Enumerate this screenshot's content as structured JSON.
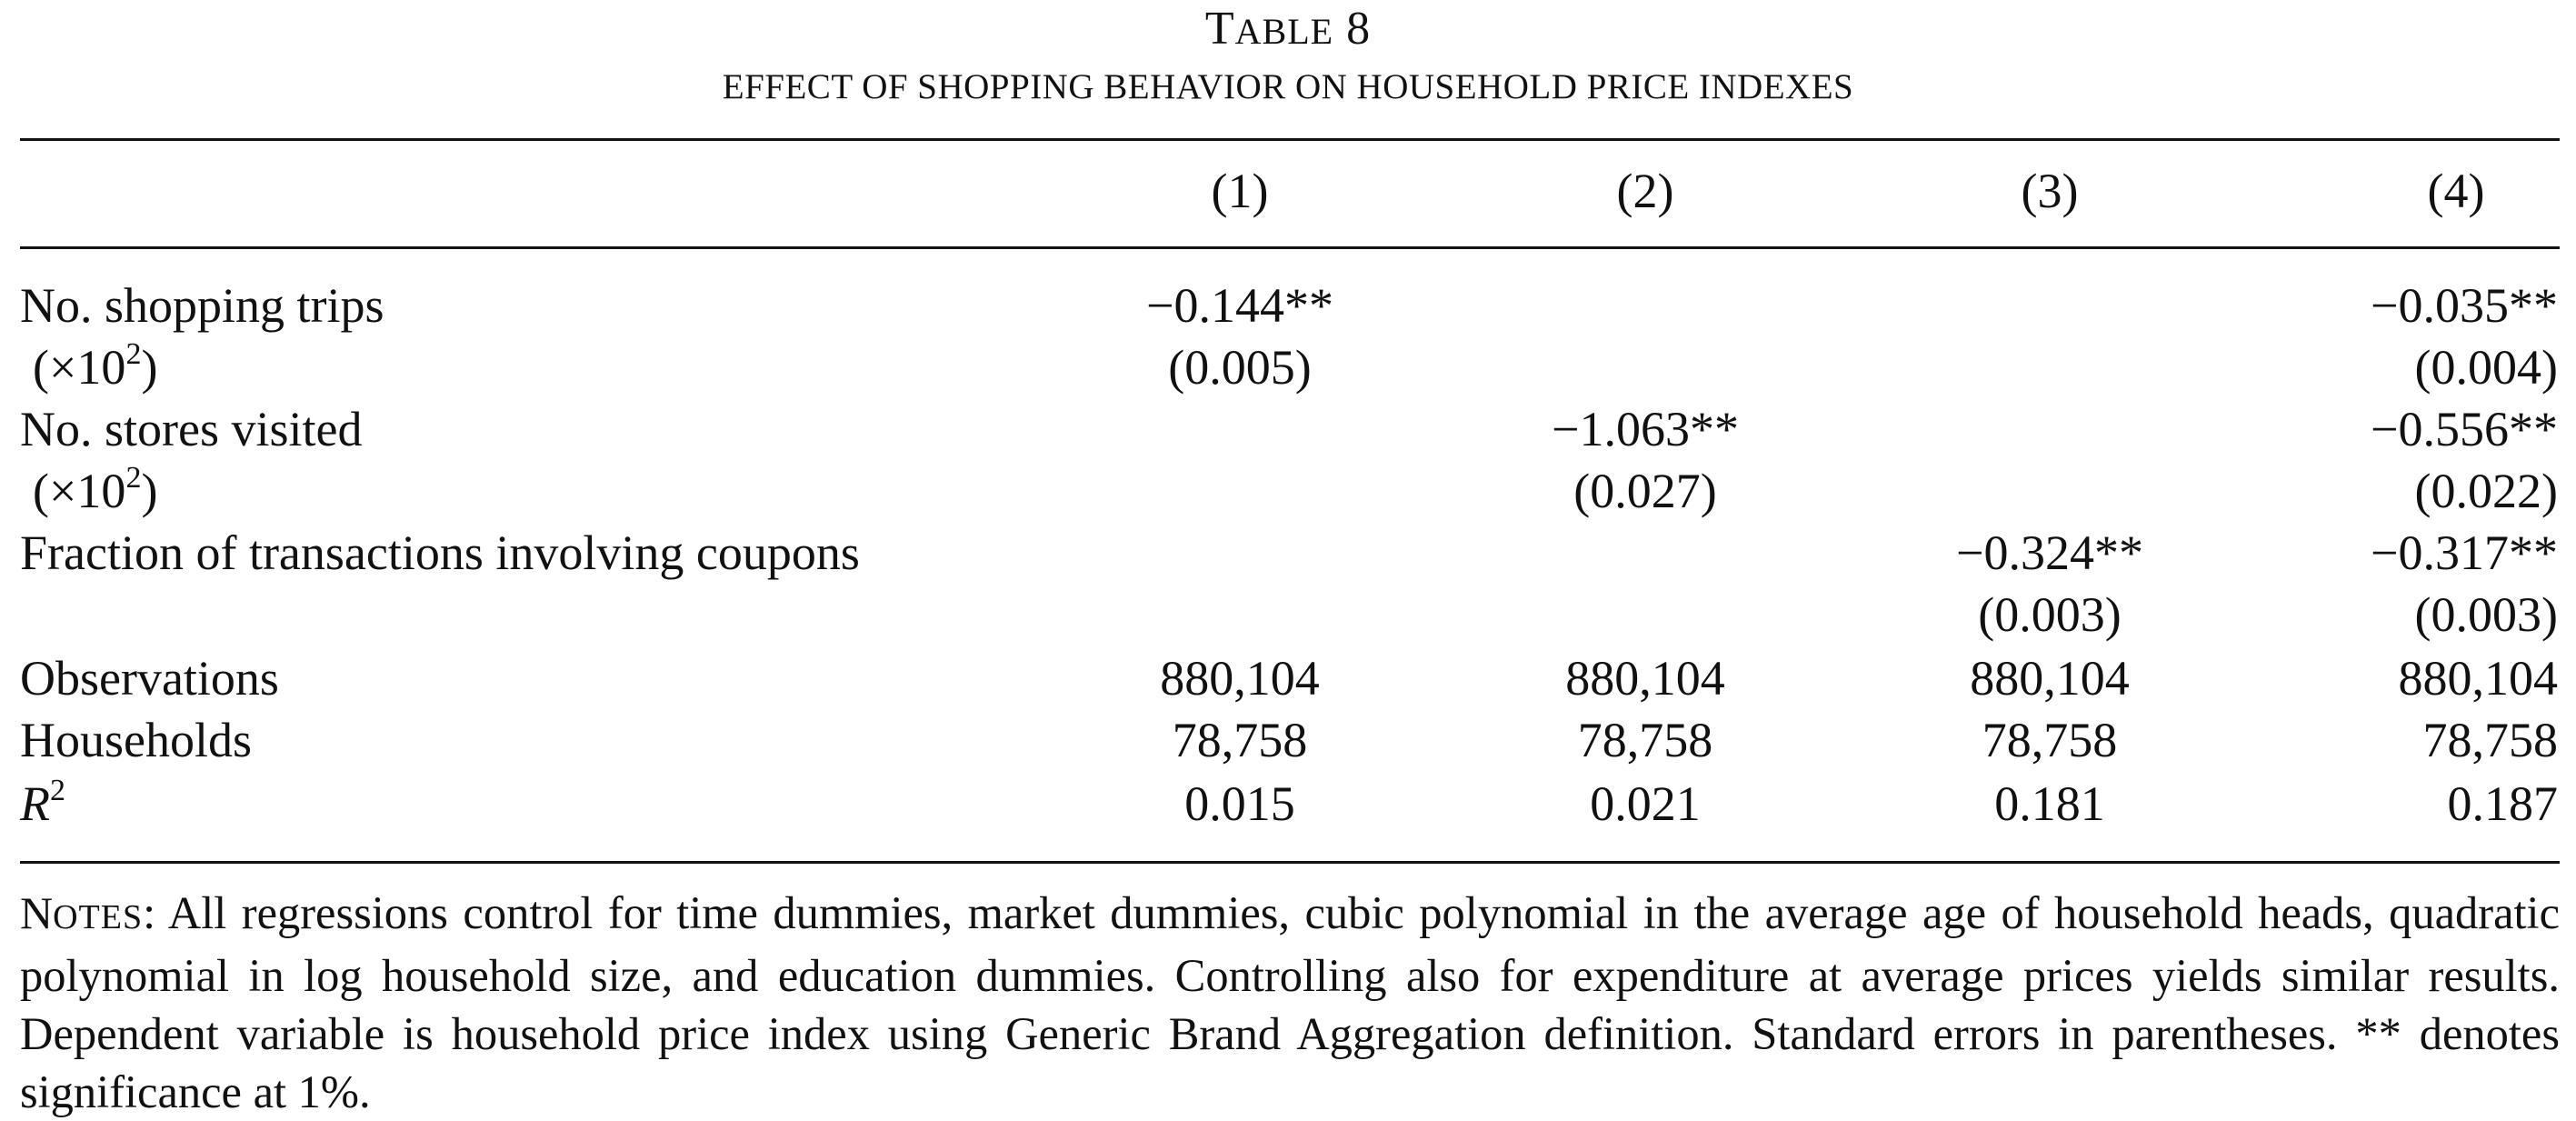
{
  "caption": {
    "table_word_first": "T",
    "table_word_rest": "ABLE",
    "table_number": "8",
    "subtitle": "EFFECT OF SHOPPING BEHAVIOR ON HOUSEHOLD PRICE INDEXES"
  },
  "columns": [
    "(1)",
    "(2)",
    "(3)",
    "(4)"
  ],
  "rows": [
    {
      "label": "No. shopping trips",
      "cells": [
        "−0.144**",
        "",
        "",
        "−0.035**"
      ]
    },
    {
      "label_prefix": "(×10",
      "label_sup": "2",
      "label_suffix": ")",
      "cells": [
        "(0.005)",
        "",
        "",
        "(0.004)"
      ]
    },
    {
      "label": "No. stores visited",
      "cells": [
        "",
        "−1.063**",
        "",
        "−0.556**"
      ]
    },
    {
      "label_prefix": "(×10",
      "label_sup": "2",
      "label_suffix": ")",
      "cells": [
        "",
        "(0.027)",
        "",
        "(0.022)"
      ]
    },
    {
      "label": "Fraction of transactions involving coupons",
      "cells": [
        "",
        "",
        "−0.324**",
        "−0.317**"
      ]
    },
    {
      "label": "",
      "cells": [
        "",
        "",
        "(0.003)",
        "(0.003)"
      ]
    },
    {
      "label": "Observations",
      "cells": [
        "880,104",
        "880,104",
        "880,104",
        "880,104"
      ]
    },
    {
      "label": "Households",
      "cells": [
        "78,758",
        "78,758",
        "78,758",
        "78,758"
      ]
    },
    {
      "label_italic": "R",
      "label_sup": "2",
      "cells": [
        "0.015",
        "0.021",
        "0.181",
        "0.187"
      ]
    }
  ],
  "notes": {
    "label_first": "N",
    "label_rest": "OTES",
    "text": ": All regressions control for time dummies, market dummies, cubic polynomial in the average age of household heads, quadratic polynomial in log household size, and education dummies. Controlling also for expenditure at average prices yields similar results. Dependent variable is household price index using Generic Brand Aggregation definition. Standard errors in parentheses. ** denotes significance at 1%."
  }
}
